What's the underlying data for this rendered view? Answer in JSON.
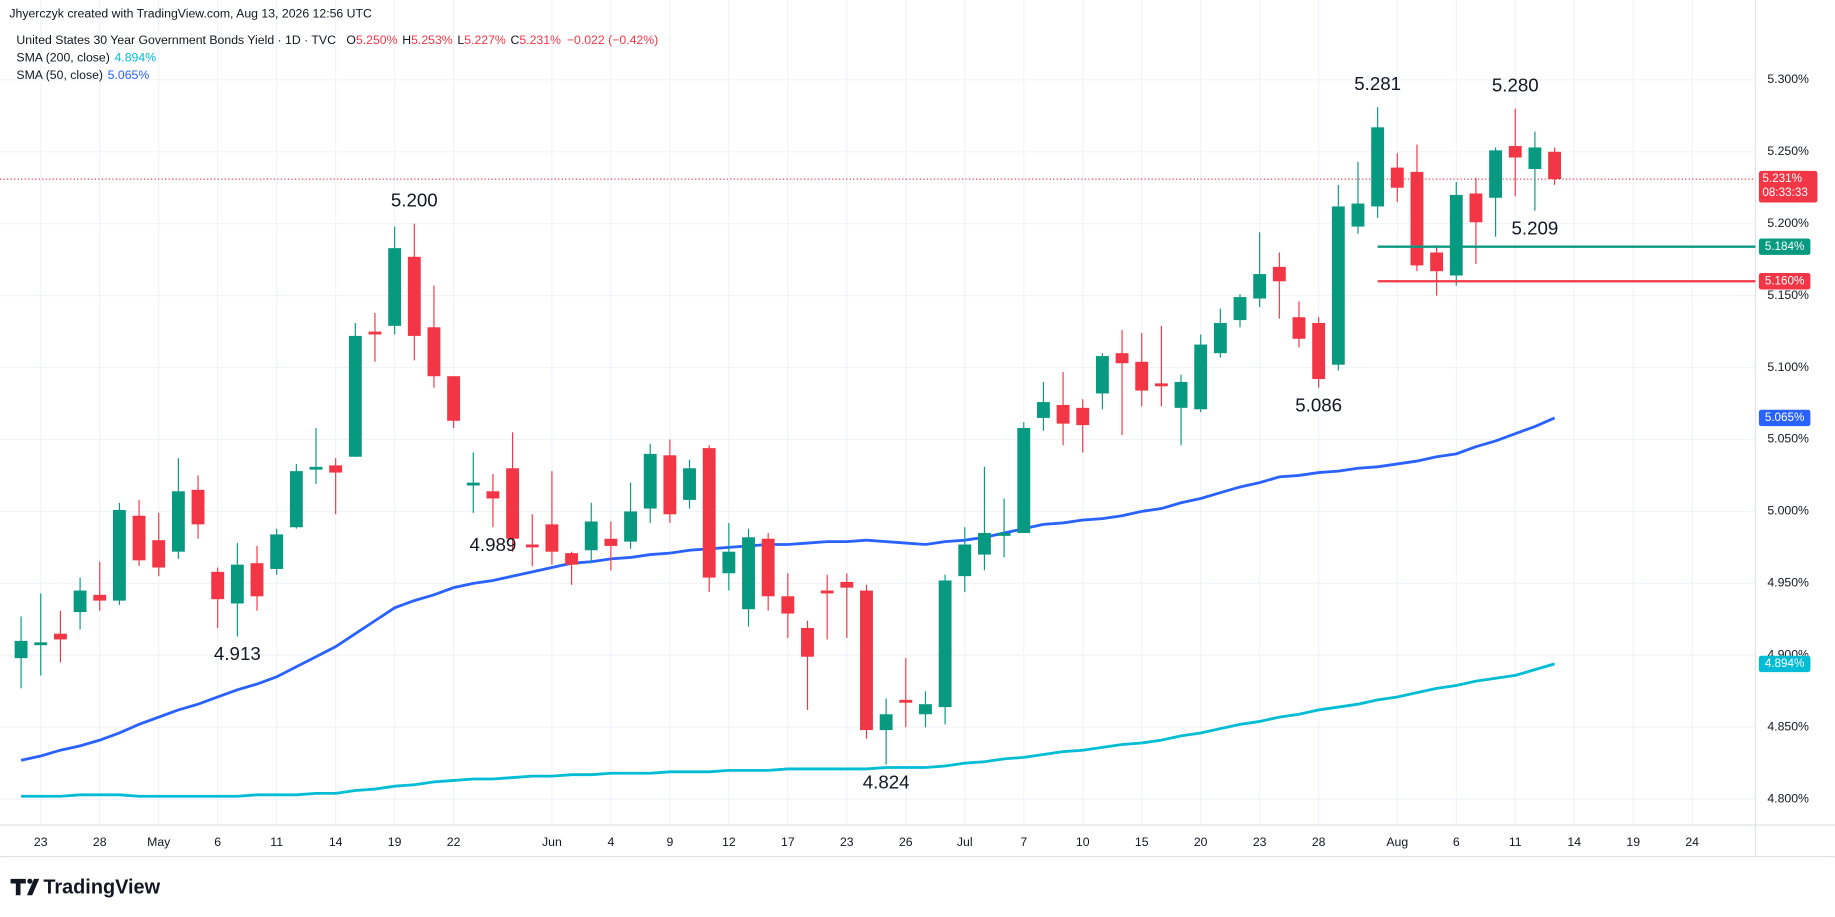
{
  "header": {
    "credit": "Jhyerczyk created with TradingView.com, Aug 13, 2026 12:56 UTC"
  },
  "footer": {
    "brand": "TradingView"
  },
  "chart_data": {
    "type": "candlestick",
    "legend": {
      "title": "United States 30 Year Government Bonds Yield · 1D · TVC",
      "ohlc": [
        [
          "O",
          "5.250%"
        ],
        [
          "H",
          "5.253%"
        ],
        [
          "L",
          "5.227%"
        ],
        [
          "C",
          "5.231%"
        ]
      ],
      "change": "−0.022 (−0.42%)"
    },
    "up_color": "#089981",
    "down_color": "#f23645",
    "dates": [
      "2026-04-22",
      "2026-04-23",
      "2026-04-24",
      "2026-04-27",
      "2026-04-28",
      "2026-04-29",
      "2026-04-30",
      "2026-05-01",
      "2026-05-04",
      "2026-05-05",
      "2026-05-06",
      "2026-05-07",
      "2026-05-08",
      "2026-05-11",
      "2026-05-12",
      "2026-05-13",
      "2026-05-14",
      "2026-05-15",
      "2026-05-18",
      "2026-05-19",
      "2026-05-20",
      "2026-05-21",
      "2026-05-22",
      "2026-05-26",
      "2026-05-27",
      "2026-05-28",
      "2026-05-29",
      "2026-06-01",
      "2026-06-02",
      "2026-06-03",
      "2026-06-04",
      "2026-06-05",
      "2026-06-08",
      "2026-06-09",
      "2026-06-10",
      "2026-06-11",
      "2026-06-12",
      "2026-06-15",
      "2026-06-16",
      "2026-06-17",
      "2026-06-18",
      "2026-06-22",
      "2026-06-23",
      "2026-06-24",
      "2026-06-25",
      "2026-06-26",
      "2026-06-29",
      "2026-06-30",
      "2026-07-01",
      "2026-07-02",
      "2026-07-06",
      "2026-07-07",
      "2026-07-08",
      "2026-07-09",
      "2026-07-10",
      "2026-07-13",
      "2026-07-14",
      "2026-07-15",
      "2026-07-16",
      "2026-07-17",
      "2026-07-20",
      "2026-07-21",
      "2026-07-22",
      "2026-07-23",
      "2026-07-24",
      "2026-07-27",
      "2026-07-28",
      "2026-07-29",
      "2026-07-30",
      "2026-07-31",
      "2026-08-03",
      "2026-08-04",
      "2026-08-05",
      "2026-08-06",
      "2026-08-07",
      "2026-08-10",
      "2026-08-11",
      "2026-08-12",
      "2026-08-13"
    ],
    "open": [
      4.898,
      4.907,
      4.915,
      4.93,
      4.942,
      4.938,
      4.997,
      4.98,
      4.972,
      5.015,
      4.958,
      4.936,
      4.964,
      4.96,
      4.989,
      5.029,
      5.032,
      5.038,
      5.125,
      5.129,
      5.177,
      5.128,
      5.094,
      5.018,
      5.014,
      5.03,
      4.977,
      4.991,
      4.971,
      4.973,
      4.981,
      4.979,
      5.002,
      5.039,
      5.008,
      5.044,
      4.957,
      4.932,
      4.981,
      4.941,
      4.919,
      4.945,
      4.951,
      4.945,
      4.848,
      4.869,
      4.859,
      4.864,
      4.955,
      4.97,
      4.983,
      4.985,
      5.065,
      5.074,
      5.072,
      5.082,
      5.11,
      5.104,
      5.089,
      5.072,
      5.071,
      5.11,
      5.133,
      5.148,
      5.17,
      5.135,
      5.131,
      5.102,
      5.198,
      5.212,
      5.239,
      5.236,
      5.18,
      5.164,
      5.221,
      5.218,
      5.254,
      5.238,
      5.25
    ],
    "high": [
      4.927,
      4.943,
      4.931,
      4.954,
      4.965,
      5.006,
      5.008,
      4.999,
      5.037,
      5.025,
      4.961,
      4.978,
      4.976,
      4.988,
      5.033,
      5.058,
      5.037,
      5.131,
      5.138,
      5.198,
      5.2,
      5.157,
      5.094,
      5.041,
      5.026,
      5.055,
      4.998,
      5.028,
      4.972,
      5.006,
      4.993,
      5.02,
      5.047,
      5.05,
      5.036,
      5.046,
      4.992,
      4.988,
      4.985,
      4.957,
      4.924,
      4.956,
      4.957,
      4.949,
      4.87,
      4.898,
      4.875,
      4.956,
      4.989,
      5.031,
      5.009,
      5.062,
      5.09,
      5.097,
      5.078,
      5.11,
      5.126,
      5.124,
      5.129,
      5.095,
      5.123,
      5.141,
      5.151,
      5.194,
      5.18,
      5.146,
      5.135,
      5.227,
      5.243,
      5.281,
      5.249,
      5.255,
      5.185,
      5.229,
      5.232,
      5.253,
      5.28,
      5.264,
      5.253
    ],
    "low": [
      4.877,
      4.886,
      4.895,
      4.918,
      4.931,
      4.935,
      4.962,
      4.955,
      4.967,
      4.981,
      4.919,
      4.913,
      4.931,
      4.956,
      4.988,
      5.019,
      4.998,
      5.038,
      5.104,
      5.123,
      5.105,
      5.086,
      5.058,
      4.999,
      4.989,
      4.972,
      4.962,
      4.963,
      4.949,
      4.964,
      4.959,
      4.974,
      4.992,
      4.992,
      5.002,
      4.944,
      4.945,
      4.92,
      4.931,
      4.912,
      4.862,
      4.911,
      4.912,
      4.842,
      4.824,
      4.85,
      4.85,
      4.852,
      4.944,
      4.959,
      4.968,
      4.985,
      5.056,
      5.046,
      5.041,
      5.071,
      5.053,
      5.073,
      5.073,
      5.046,
      5.069,
      5.107,
      5.128,
      5.142,
      5.134,
      5.114,
      5.086,
      5.098,
      5.193,
      5.204,
      5.215,
      5.167,
      5.15,
      5.157,
      5.172,
      5.191,
      5.219,
      5.209,
      5.227
    ],
    "close": [
      4.91,
      4.909,
      4.911,
      4.945,
      4.938,
      5.001,
      4.966,
      4.961,
      5.014,
      4.991,
      4.939,
      4.963,
      4.941,
      4.984,
      5.028,
      5.031,
      5.027,
      5.122,
      5.123,
      5.183,
      5.122,
      5.094,
      5.063,
      5.02,
      5.009,
      4.981,
      4.975,
      4.972,
      4.963,
      4.993,
      4.976,
      5.0,
      5.04,
      4.998,
      5.03,
      4.954,
      4.972,
      4.982,
      4.941,
      4.929,
      4.899,
      4.943,
      4.947,
      4.848,
      4.859,
      4.867,
      4.866,
      4.952,
      4.977,
      4.985,
      4.985,
      5.058,
      5.076,
      5.061,
      5.06,
      5.108,
      5.103,
      5.084,
      5.087,
      5.09,
      5.116,
      5.131,
      5.149,
      5.165,
      5.16,
      5.12,
      5.092,
      5.212,
      5.214,
      5.267,
      5.225,
      5.171,
      5.167,
      5.22,
      5.201,
      5.251,
      5.246,
      5.253,
      5.231
    ],
    "series": [
      {
        "name": "SMA (200, close)",
        "color": "#00bcd4",
        "value_label": "4.894%",
        "values": [
          4.802,
          4.802,
          4.802,
          4.803,
          4.803,
          4.803,
          4.802,
          4.802,
          4.802,
          4.802,
          4.802,
          4.802,
          4.803,
          4.803,
          4.803,
          4.804,
          4.804,
          4.806,
          4.807,
          4.809,
          4.81,
          4.812,
          4.813,
          4.814,
          4.814,
          4.815,
          4.816,
          4.816,
          4.817,
          4.817,
          4.818,
          4.818,
          4.818,
          4.819,
          4.819,
          4.819,
          4.82,
          4.82,
          4.82,
          4.821,
          4.821,
          4.821,
          4.821,
          4.821,
          4.822,
          4.822,
          4.822,
          4.823,
          4.825,
          4.826,
          4.828,
          4.829,
          4.831,
          4.833,
          4.834,
          4.836,
          4.838,
          4.839,
          4.841,
          4.844,
          4.846,
          4.849,
          4.852,
          4.854,
          4.857,
          4.859,
          4.862,
          4.864,
          4.866,
          4.869,
          4.871,
          4.874,
          4.877,
          4.879,
          4.882,
          4.884,
          4.886,
          4.89,
          4.894
        ]
      },
      {
        "name": "SMA (50, close)",
        "color": "#2962ff",
        "value_label": "5.065%",
        "values": [
          4.827,
          4.83,
          4.834,
          4.837,
          4.841,
          4.846,
          4.852,
          4.857,
          4.862,
          4.866,
          4.871,
          4.876,
          4.88,
          4.885,
          4.892,
          4.899,
          4.906,
          4.915,
          4.924,
          4.933,
          4.938,
          4.942,
          4.947,
          4.95,
          4.952,
          4.955,
          4.958,
          4.961,
          4.964,
          4.965,
          4.967,
          4.968,
          4.97,
          4.971,
          4.973,
          4.974,
          4.975,
          4.976,
          4.977,
          4.977,
          4.978,
          4.979,
          4.979,
          4.98,
          4.979,
          4.978,
          4.977,
          4.979,
          4.98,
          4.982,
          4.985,
          4.988,
          4.991,
          4.992,
          4.994,
          4.995,
          4.997,
          5.0,
          5.002,
          5.006,
          5.009,
          5.013,
          5.017,
          5.02,
          5.024,
          5.025,
          5.027,
          5.028,
          5.03,
          5.031,
          5.033,
          5.035,
          5.038,
          5.04,
          5.045,
          5.049,
          5.054,
          5.059,
          5.065
        ]
      }
    ],
    "ylim": [
      4.782,
      5.349
    ],
    "yticks": [
      {
        "value": 4.8,
        "label": "4.800%"
      },
      {
        "value": 4.85,
        "label": "4.850%"
      },
      {
        "value": 4.9,
        "label": "4.900%"
      },
      {
        "value": 4.95,
        "label": "4.950%"
      },
      {
        "value": 5.0,
        "label": "5.000%"
      },
      {
        "value": 5.05,
        "label": "5.050%"
      },
      {
        "value": 5.1,
        "label": "5.100%"
      },
      {
        "value": 5.15,
        "label": "5.150%"
      },
      {
        "value": 5.2,
        "label": "5.200%"
      },
      {
        "value": 5.25,
        "label": "5.250%"
      },
      {
        "value": 5.3,
        "label": "5.300%"
      }
    ],
    "xticks": [
      {
        "value": "2026-04-23",
        "label": "23"
      },
      {
        "value": "2026-04-28",
        "label": "28"
      },
      {
        "value": "2026-05-01",
        "label": "May"
      },
      {
        "value": "2026-05-06",
        "label": "6"
      },
      {
        "value": "2026-05-11",
        "label": "11"
      },
      {
        "value": "2026-05-14",
        "label": "14"
      },
      {
        "value": "2026-05-19",
        "label": "19"
      },
      {
        "value": "2026-05-22",
        "label": "22"
      },
      {
        "value": "2026-06-01",
        "label": "Jun"
      },
      {
        "value": "2026-06-04",
        "label": "4"
      },
      {
        "value": "2026-06-09",
        "label": "9"
      },
      {
        "value": "2026-06-12",
        "label": "12"
      },
      {
        "value": "2026-06-17",
        "label": "17"
      },
      {
        "value": "2026-06-23",
        "label": "23"
      },
      {
        "value": "2026-06-26",
        "label": "26"
      },
      {
        "value": "2026-07-01",
        "label": "Jul"
      },
      {
        "value": "2026-07-07",
        "label": "7"
      },
      {
        "value": "2026-07-10",
        "label": "10"
      },
      {
        "value": "2026-07-15",
        "label": "15"
      },
      {
        "value": "2026-07-20",
        "label": "20"
      },
      {
        "value": "2026-07-23",
        "label": "23"
      },
      {
        "value": "2026-07-28",
        "label": "28"
      },
      {
        "value": "2026-08-03",
        "label": "Aug"
      },
      {
        "value": "2026-08-06",
        "label": "6"
      },
      {
        "value": "2026-08-11",
        "label": "11"
      },
      {
        "value": "2026-08-14",
        "label": "14"
      },
      {
        "value": "2026-08-19",
        "label": "19"
      },
      {
        "value": "2026-08-24",
        "label": "24"
      }
    ],
    "grid": true,
    "annotations": [
      {
        "text": "5.200",
        "x": "2026-05-20",
        "at": "high"
      },
      {
        "text": "4.913",
        "x": "2026-05-07",
        "at": "low"
      },
      {
        "text": "4.989",
        "x": "2026-05-27",
        "at": "low"
      },
      {
        "text": "4.824",
        "x": "2026-06-25",
        "at": "low"
      },
      {
        "text": "5.086",
        "x": "2026-07-28",
        "at": "low"
      },
      {
        "text": "5.281",
        "x": "2026-07-31",
        "at": "high"
      },
      {
        "text": "5.280",
        "x": "2026-08-11",
        "at": "high"
      },
      {
        "text": "5.209",
        "x": "2026-08-12",
        "at": "low"
      }
    ],
    "hlines": [
      {
        "value": 5.184,
        "label": "5.184%",
        "color": "#089981",
        "from": "2026-07-31"
      },
      {
        "value": 5.16,
        "label": "5.160%",
        "color": "#f23645",
        "from": "2026-07-31"
      }
    ],
    "last_price": {
      "label": "5.231%",
      "countdown": "08:33:33",
      "color": "#f23645"
    }
  }
}
